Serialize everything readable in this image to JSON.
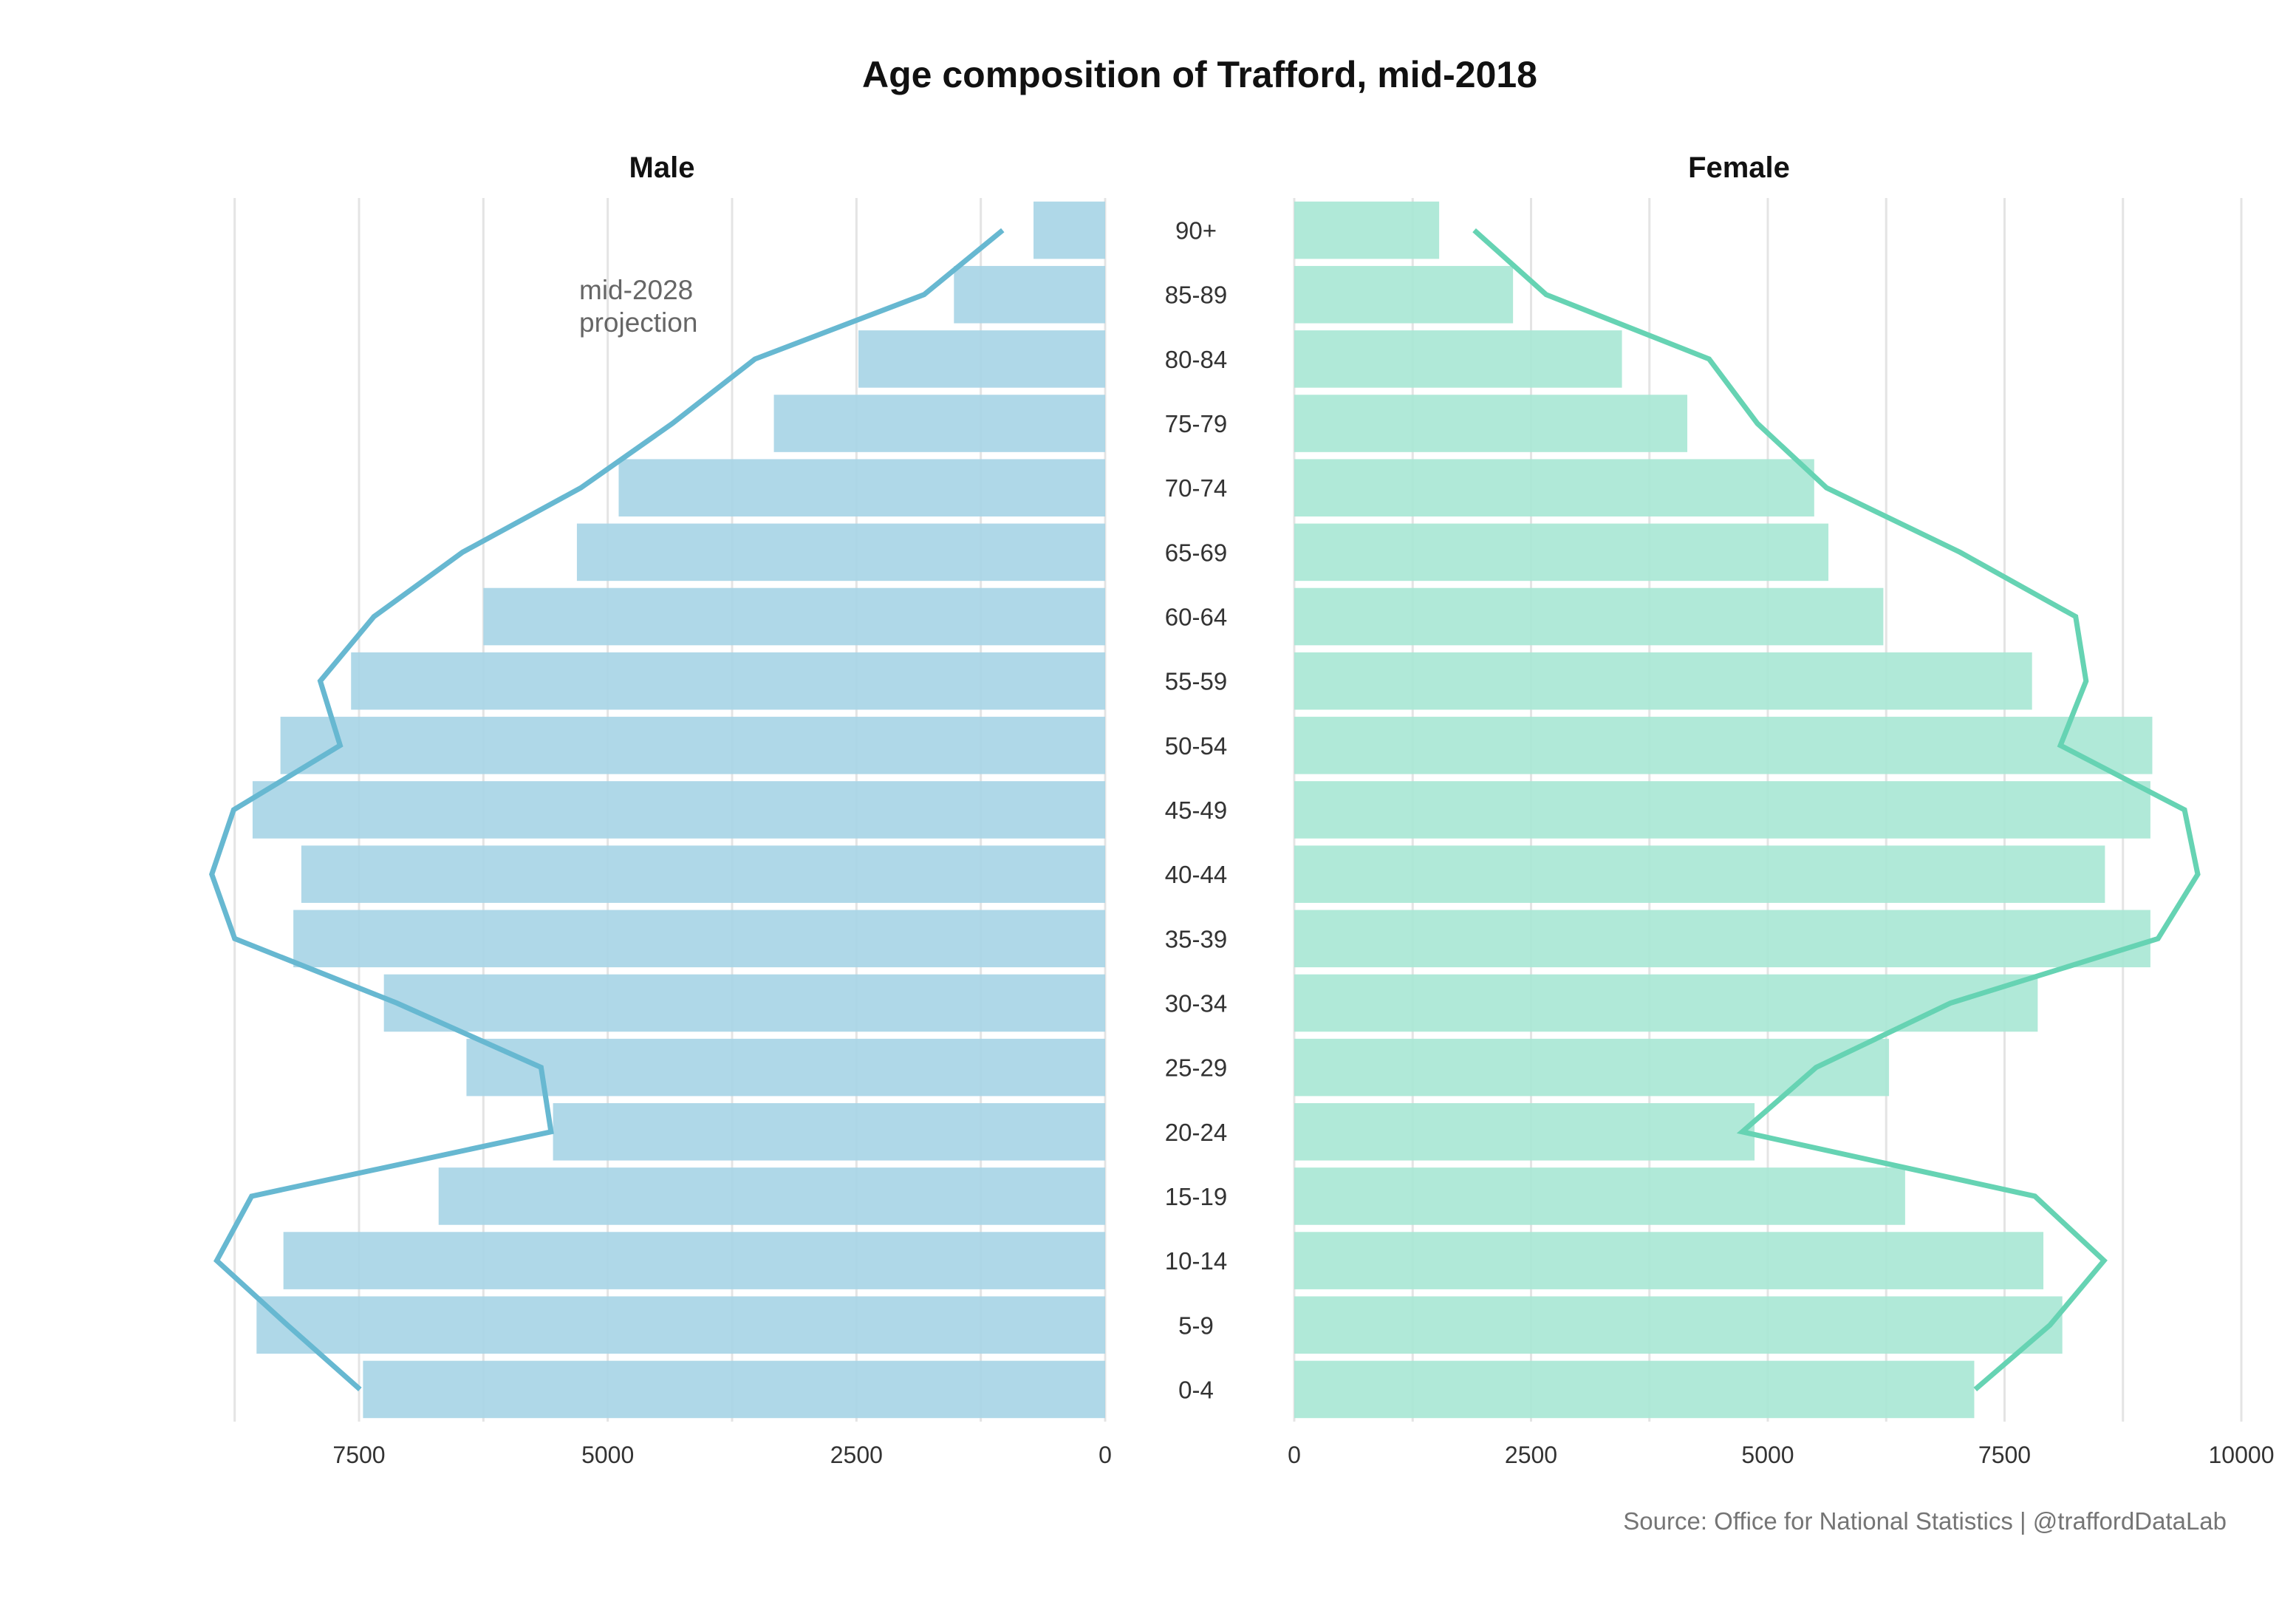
{
  "chart_data": {
    "type": "bar",
    "title": "Age composition of Trafford, mid-2018",
    "caption": "Source: Office for National Statistics | @traffordDataLab",
    "annotation": [
      "mid-2028",
      "projection"
    ],
    "categories": [
      "0-4",
      "5-9",
      "10-14",
      "15-19",
      "20-24",
      "25-29",
      "30-34",
      "35-39",
      "40-44",
      "45-49",
      "50-54",
      "55-59",
      "60-64",
      "65-69",
      "70-74",
      "75-79",
      "80-84",
      "85-89",
      "90+"
    ],
    "panels": [
      {
        "name": "Male",
        "orientation": "reversed",
        "xlim": [
          0,
          9000
        ],
        "ticks": [
          "7500",
          "5000",
          "2500",
          "0"
        ],
        "tick_values": [
          7500,
          5000,
          2500,
          0
        ],
        "bar_color": "#a8d5e6",
        "line_color": "#67b8d1",
        "series": [
          {
            "name": "mid-2018",
            "values": [
              7460,
              8530,
              8260,
              6700,
              5550,
              6420,
              7250,
              8160,
              8080,
              8570,
              8290,
              7580,
              6250,
              5310,
              4890,
              3330,
              2480,
              1520,
              720
            ]
          },
          {
            "name": "mid-2028 projection",
            "values": [
              7490,
              8220,
              8930,
              8580,
              5570,
              5670,
              7120,
              8750,
              8980,
              8760,
              7690,
              7890,
              7350,
              6460,
              5270,
              4350,
              3520,
              1820,
              1030
            ]
          }
        ]
      },
      {
        "name": "Female",
        "orientation": "normal",
        "xlim": [
          0,
          10000
        ],
        "ticks": [
          "0",
          "2500",
          "5000",
          "7500",
          "10000"
        ],
        "tick_values": [
          0,
          2500,
          5000,
          7500,
          10000
        ],
        "bar_color": "#a9e7d5",
        "line_color": "#66d3b3",
        "series": [
          {
            "name": "mid-2018",
            "values": [
              7180,
              8110,
              7910,
              6450,
              4860,
              6280,
              7850,
              9040,
              8560,
              9040,
              9060,
              7790,
              6220,
              5640,
              5490,
              4150,
              3460,
              2310,
              1530
            ]
          },
          {
            "name": "mid-2028 projection",
            "values": [
              7190,
              7980,
              8550,
              7820,
              4730,
              5510,
              6930,
              9120,
              9540,
              9400,
              8090,
              8360,
              8250,
              7030,
              5620,
              4890,
              4380,
              2660,
              1900
            ]
          }
        ]
      }
    ]
  }
}
